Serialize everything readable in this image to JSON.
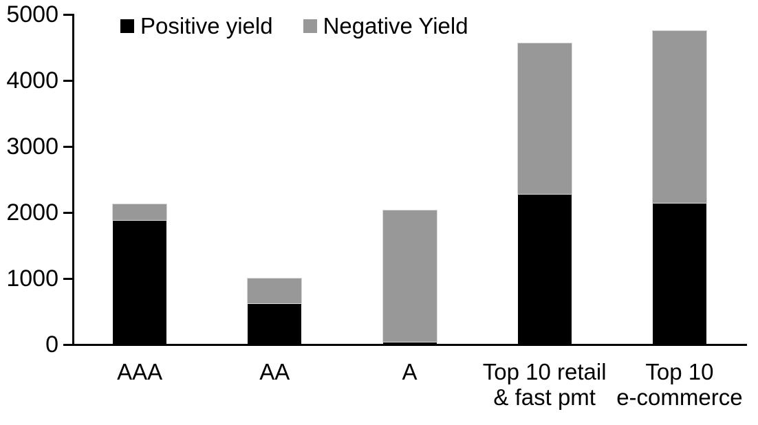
{
  "chart_data": {
    "type": "bar",
    "stacked": true,
    "title": "",
    "xlabel": "",
    "ylabel": "",
    "categories": [
      "AAA",
      "AA",
      "A",
      "Top 10 retail\n& fast pmt",
      "Top 10\ne-commerce"
    ],
    "series": [
      {
        "name": "Positive yield",
        "color": "#000000",
        "values": [
          1890,
          620,
          40,
          2280,
          2150
        ]
      },
      {
        "name": "Negative Yield",
        "color": "#989898",
        "values": [
          240,
          385,
          1990,
          2280,
          2600
        ]
      }
    ],
    "totals": [
      2130,
      1005,
      2030,
      4560,
      4750
    ],
    "ylim": [
      0,
      5000
    ],
    "yticks": [
      0,
      1000,
      2000,
      3000,
      4000,
      5000
    ],
    "grid": false,
    "legend_position": "top",
    "axis_color": "#000000",
    "background_color": "#ffffff"
  }
}
